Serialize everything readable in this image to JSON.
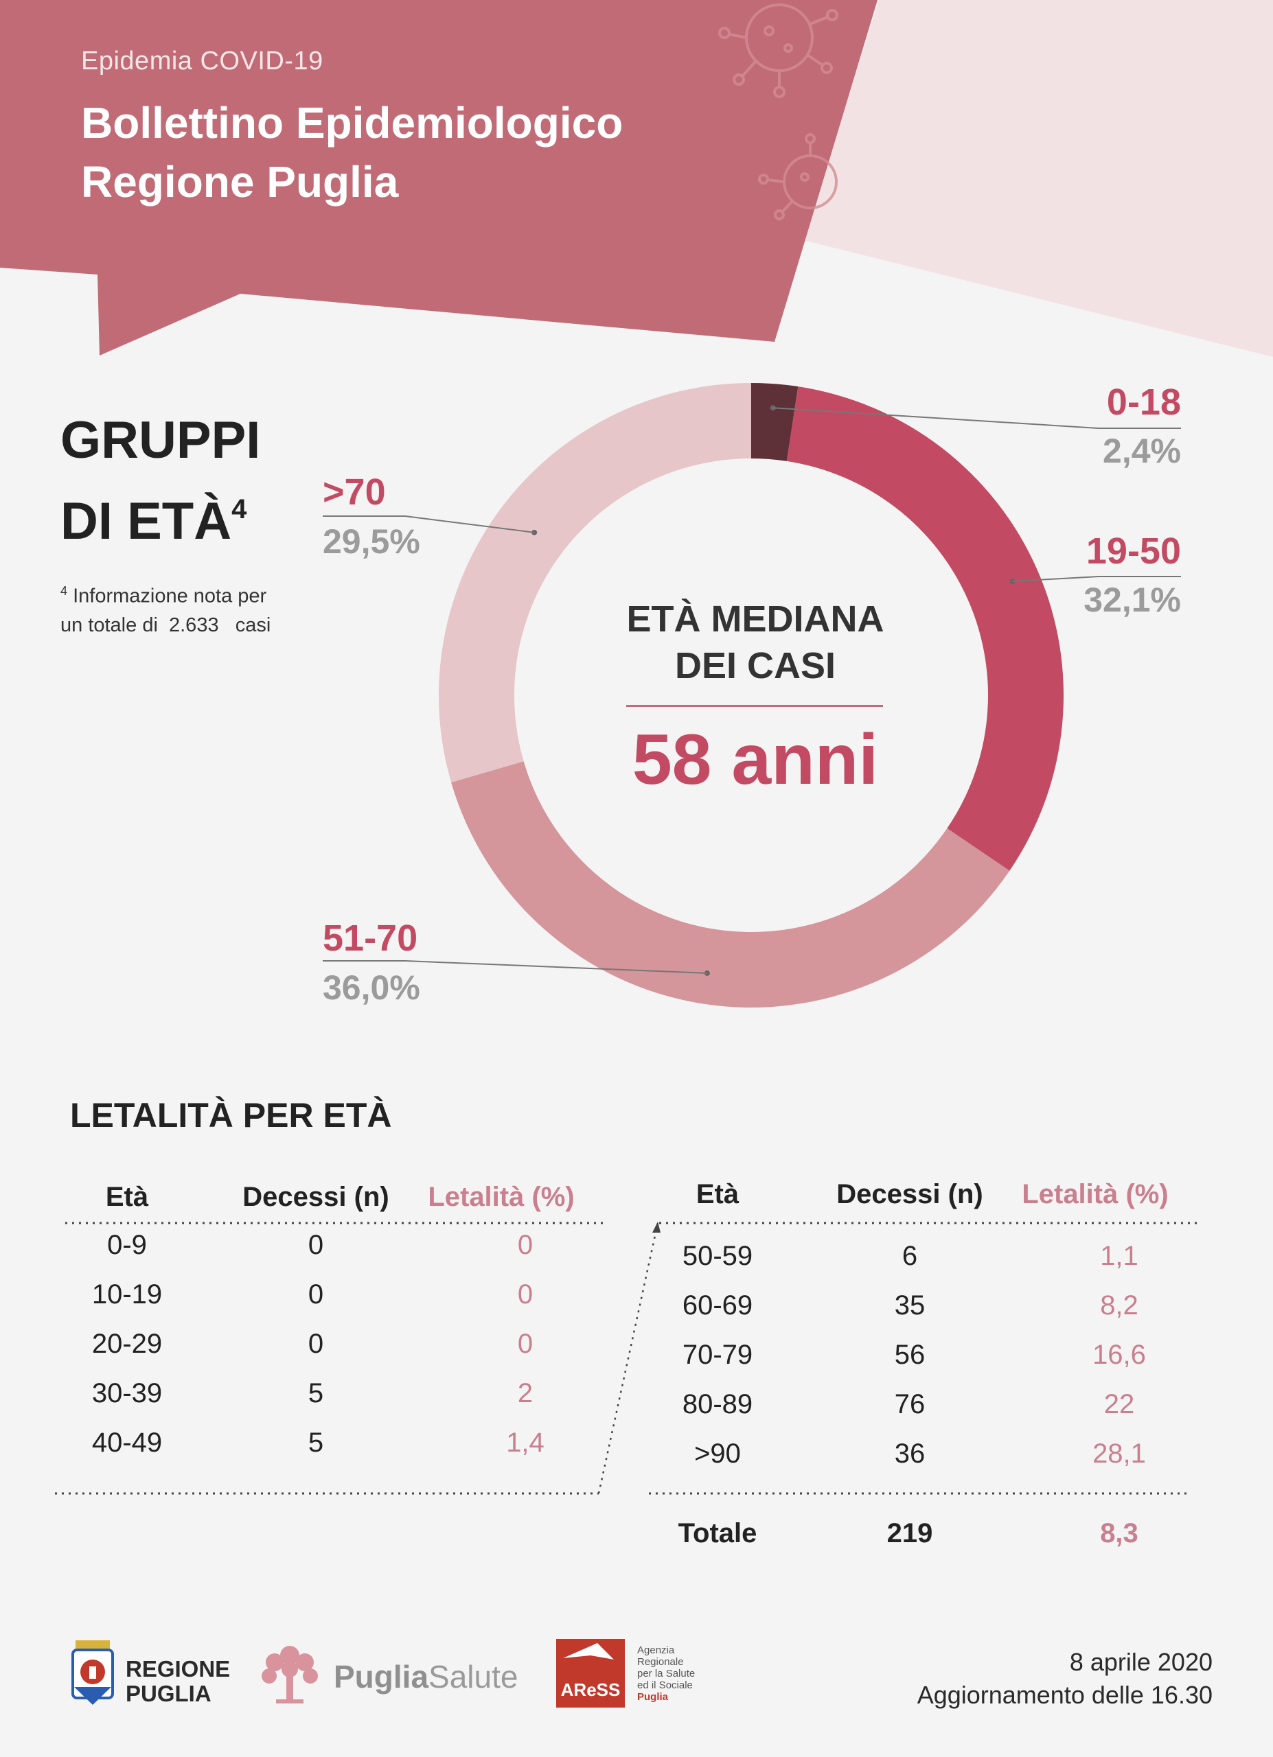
{
  "header": {
    "pretitle": "Epidemia COVID-19",
    "title_line1": "Bollettino Epidemiologico",
    "title_line2": "Regione Puglia"
  },
  "age_groups": {
    "title_line1": "GRUPPI",
    "title_line2": "DI ETÀ",
    "title_sup": "4",
    "footnote_sup": "4",
    "footnote_line1": "Informazione nota per",
    "footnote_line2": "un totale di  2.633   casi",
    "center_line1": "ETÀ MEDIANA",
    "center_line2": "DEI CASI",
    "median": "58 anni"
  },
  "chart_data": {
    "type": "pie",
    "subtype": "donut",
    "categories": [
      "0-18",
      "19-50",
      "51-70",
      ">70"
    ],
    "values": [
      2.4,
      32.1,
      36.0,
      29.5
    ],
    "value_labels": [
      "2,4%",
      "32,1%",
      "36,0%",
      "29,5%"
    ],
    "colors": [
      "#5e3037",
      "#c24a62",
      "#d4959b",
      "#e6c6c9"
    ],
    "center_text": "ETÀ MEDIANA DEI CASI",
    "center_value": "58 anni"
  },
  "lethality": {
    "title": "LETALITÀ PER ETÀ",
    "headers": [
      "Età",
      "Decessi (n)",
      "Letalità (%)"
    ],
    "left_rows": [
      [
        "0-9",
        "0",
        "0"
      ],
      [
        "10-19",
        "0",
        "0"
      ],
      [
        "20-29",
        "0",
        "0"
      ],
      [
        "30-39",
        "5",
        "2"
      ],
      [
        "40-49",
        "5",
        "1,4"
      ]
    ],
    "right_rows": [
      [
        "50-59",
        "6",
        "1,1"
      ],
      [
        "60-69",
        "35",
        "8,2"
      ],
      [
        "70-79",
        "56",
        "16,6"
      ],
      [
        "80-89",
        "76",
        "22"
      ],
      [
        ">90",
        "36",
        "28,1"
      ]
    ],
    "total": [
      "Totale",
      "219",
      "8,3"
    ]
  },
  "footer": {
    "regione_line1": "REGIONE",
    "regione_line2": "PUGLIA",
    "pugliasalute_bold": "Puglia",
    "pugliasalute_light": "Salute",
    "aress_logo": "AReSS",
    "aress_lines": [
      "Agenzia",
      "Regionale",
      "per la Salute",
      "ed il Sociale",
      "Puglia"
    ],
    "date": "8 aprile 2020",
    "update": "Aggiornamento delle 16.30"
  }
}
